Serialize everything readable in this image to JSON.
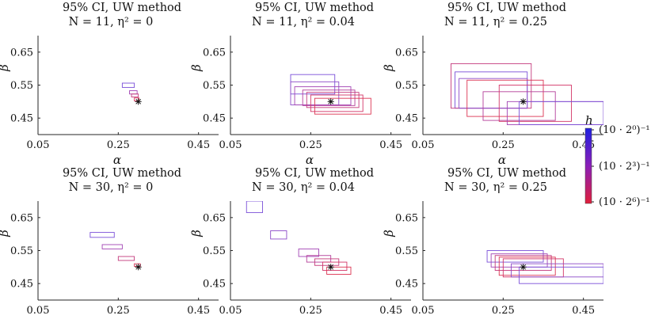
{
  "colorbar": {
    "label": "h",
    "tick_labels": [
      "(10 · 2⁰)⁻¹",
      "(10 · 2³)⁻¹",
      "(10 · 2⁶)⁻¹"
    ],
    "color_top": "#1f1fe0",
    "color_bottom": "#e01f3a"
  },
  "chart_data": [
    {
      "type": "rect-ci",
      "title_line1": "95% CI, UW method",
      "title_line2": "N = 11, η² = 0",
      "xlabel": "α",
      "ylabel": "β",
      "xlim": [
        0.05,
        0.5
      ],
      "ylim": [
        0.4,
        0.7
      ],
      "xticks": [
        "0.05",
        "0.25",
        "0.45"
      ],
      "yticks": [
        "0.65",
        "0.55",
        "0.45"
      ],
      "true_point": [
        0.3,
        0.5
      ],
      "rects": [
        {
          "x0": 0.26,
          "x1": 0.29,
          "y0": 0.543,
          "y1": 0.556,
          "color": "#7a4fd8"
        },
        {
          "x0": 0.278,
          "x1": 0.297,
          "y0": 0.523,
          "y1": 0.533,
          "color": "#a244b4"
        },
        {
          "x0": 0.283,
          "x1": 0.3,
          "y0": 0.514,
          "y1": 0.523,
          "color": "#c43a7c"
        },
        {
          "x0": 0.29,
          "x1": 0.302,
          "y0": 0.502,
          "y1": 0.511,
          "color": "#d8365a"
        }
      ]
    },
    {
      "type": "rect-ci",
      "title_line1": "95% CI, UW method",
      "title_line2": "N = 11, η² = 0.04",
      "xlabel": "α",
      "ylabel": "β",
      "xlim": [
        0.05,
        0.5
      ],
      "ylim": [
        0.4,
        0.7
      ],
      "xticks": [
        "0.05",
        "0.25",
        "0.45"
      ],
      "yticks": [
        "0.65",
        "0.55",
        "0.45"
      ],
      "true_point": [
        0.3,
        0.5
      ],
      "rects": [
        {
          "x0": 0.2,
          "x1": 0.31,
          "y0": 0.523,
          "y1": 0.582,
          "color": "#7a4fd8"
        },
        {
          "x0": 0.2,
          "x1": 0.32,
          "y0": 0.49,
          "y1": 0.56,
          "color": "#8d4bc8"
        },
        {
          "x0": 0.21,
          "x1": 0.35,
          "y0": 0.49,
          "y1": 0.545,
          "color": "#a244b4"
        },
        {
          "x0": 0.23,
          "x1": 0.36,
          "y0": 0.488,
          "y1": 0.535,
          "color": "#b43f9a"
        },
        {
          "x0": 0.24,
          "x1": 0.37,
          "y0": 0.482,
          "y1": 0.528,
          "color": "#c43a7c"
        },
        {
          "x0": 0.25,
          "x1": 0.38,
          "y0": 0.47,
          "y1": 0.52,
          "color": "#d33668"
        },
        {
          "x0": 0.26,
          "x1": 0.4,
          "y0": 0.462,
          "y1": 0.51,
          "color": "#dc3452"
        }
      ]
    },
    {
      "type": "rect-ci",
      "title_line1": "95% CI, UW method",
      "title_line2": "N = 11, η² = 0.25",
      "xlabel": "α",
      "ylabel": "β",
      "xlim": [
        0.05,
        0.5
      ],
      "ylim": [
        0.4,
        0.7
      ],
      "xticks": [
        "0.05",
        "0.25",
        "0.45"
      ],
      "yticks": [
        "0.65",
        "0.55",
        "0.45"
      ],
      "true_point": [
        0.3,
        0.5
      ],
      "rects": [
        {
          "x0": 0.13,
          "x1": 0.31,
          "y0": 0.48,
          "y1": 0.59,
          "color": "#7a4fd8"
        },
        {
          "x0": 0.12,
          "x1": 0.32,
          "y0": 0.48,
          "y1": 0.615,
          "color": "#c43a7c"
        },
        {
          "x0": 0.14,
          "x1": 0.31,
          "y0": 0.48,
          "y1": 0.57,
          "color": "#8d4bc8"
        },
        {
          "x0": 0.16,
          "x1": 0.35,
          "y0": 0.455,
          "y1": 0.565,
          "color": "#dc3452"
        },
        {
          "x0": 0.2,
          "x1": 0.38,
          "y0": 0.443,
          "y1": 0.53,
          "color": "#b43f9a"
        },
        {
          "x0": 0.24,
          "x1": 0.42,
          "y0": 0.44,
          "y1": 0.55,
          "color": "#d33668"
        },
        {
          "x0": 0.26,
          "x1": 0.5,
          "y0": 0.43,
          "y1": 0.5,
          "color": "#a244b4"
        },
        {
          "x0": 0.29,
          "x1": 0.5,
          "y0": 0.43,
          "y1": 0.5,
          "color": "#7a4fd8"
        }
      ]
    },
    {
      "type": "rect-ci",
      "title_line1": "95% CI, UW method",
      "title_line2": "N = 30, η² = 0",
      "xlabel": "α",
      "ylabel": "β",
      "xlim": [
        0.05,
        0.5
      ],
      "ylim": [
        0.4,
        0.7
      ],
      "xticks": [
        "0.05",
        "0.25",
        "0.45"
      ],
      "yticks": [
        "0.65",
        "0.55",
        "0.45"
      ],
      "true_point": [
        0.3,
        0.5
      ],
      "rects": [
        {
          "x0": 0.18,
          "x1": 0.24,
          "y0": 0.59,
          "y1": 0.605,
          "color": "#7a4fd8"
        },
        {
          "x0": 0.21,
          "x1": 0.26,
          "y0": 0.555,
          "y1": 0.568,
          "color": "#a244b4"
        },
        {
          "x0": 0.25,
          "x1": 0.29,
          "y0": 0.52,
          "y1": 0.532,
          "color": "#c43a7c"
        },
        {
          "x0": 0.29,
          "x1": 0.305,
          "y0": 0.502,
          "y1": 0.51,
          "color": "#d8365a"
        }
      ]
    },
    {
      "type": "rect-ci",
      "title_line1": "95% CI, UW method",
      "title_line2": "N = 30, η² = 0.04",
      "xlabel": "α",
      "ylabel": "β",
      "xlim": [
        0.05,
        0.5
      ],
      "ylim": [
        0.4,
        0.7
      ],
      "xticks": [
        "0.05",
        "0.25",
        "0.45"
      ],
      "yticks": [
        "0.65",
        "0.55",
        "0.45"
      ],
      "true_point": [
        0.3,
        0.5
      ],
      "rects": [
        {
          "x0": 0.09,
          "x1": 0.13,
          "y0": 0.665,
          "y1": 0.7,
          "color": "#7a4fd8"
        },
        {
          "x0": 0.15,
          "x1": 0.19,
          "y0": 0.585,
          "y1": 0.61,
          "color": "#8d4bc8"
        },
        {
          "x0": 0.22,
          "x1": 0.27,
          "y0": 0.532,
          "y1": 0.555,
          "color": "#a244b4"
        },
        {
          "x0": 0.24,
          "x1": 0.3,
          "y0": 0.515,
          "y1": 0.535,
          "color": "#b43f9a"
        },
        {
          "x0": 0.26,
          "x1": 0.32,
          "y0": 0.505,
          "y1": 0.525,
          "color": "#c43a7c"
        },
        {
          "x0": 0.28,
          "x1": 0.34,
          "y0": 0.49,
          "y1": 0.515,
          "color": "#d33668"
        },
        {
          "x0": 0.29,
          "x1": 0.35,
          "y0": 0.478,
          "y1": 0.5,
          "color": "#dc3452"
        }
      ]
    },
    {
      "type": "rect-ci",
      "title_line1": "95% CI, UW method",
      "title_line2": "N = 30, η² = 0.25",
      "xlabel": "α",
      "ylabel": "β",
      "xlim": [
        0.05,
        0.5
      ],
      "ylim": [
        0.4,
        0.7
      ],
      "xticks": [
        "0.05",
        "0.25",
        "0.45"
      ],
      "yticks": [
        "0.65",
        "0.55",
        "0.45"
      ],
      "true_point": [
        0.3,
        0.5
      ],
      "rects": [
        {
          "x0": 0.21,
          "x1": 0.35,
          "y0": 0.515,
          "y1": 0.55,
          "color": "#7a4fd8"
        },
        {
          "x0": 0.22,
          "x1": 0.36,
          "y0": 0.5,
          "y1": 0.54,
          "color": "#a244b4"
        },
        {
          "x0": 0.23,
          "x1": 0.37,
          "y0": 0.49,
          "y1": 0.535,
          "color": "#c43a7c"
        },
        {
          "x0": 0.24,
          "x1": 0.38,
          "y0": 0.475,
          "y1": 0.53,
          "color": "#dc3452"
        },
        {
          "x0": 0.25,
          "x1": 0.4,
          "y0": 0.47,
          "y1": 0.525,
          "color": "#d33668"
        },
        {
          "x0": 0.27,
          "x1": 0.5,
          "y0": 0.47,
          "y1": 0.51,
          "color": "#8d4bc8"
        },
        {
          "x0": 0.29,
          "x1": 0.5,
          "y0": 0.45,
          "y1": 0.5,
          "color": "#7a4fd8"
        }
      ]
    }
  ]
}
